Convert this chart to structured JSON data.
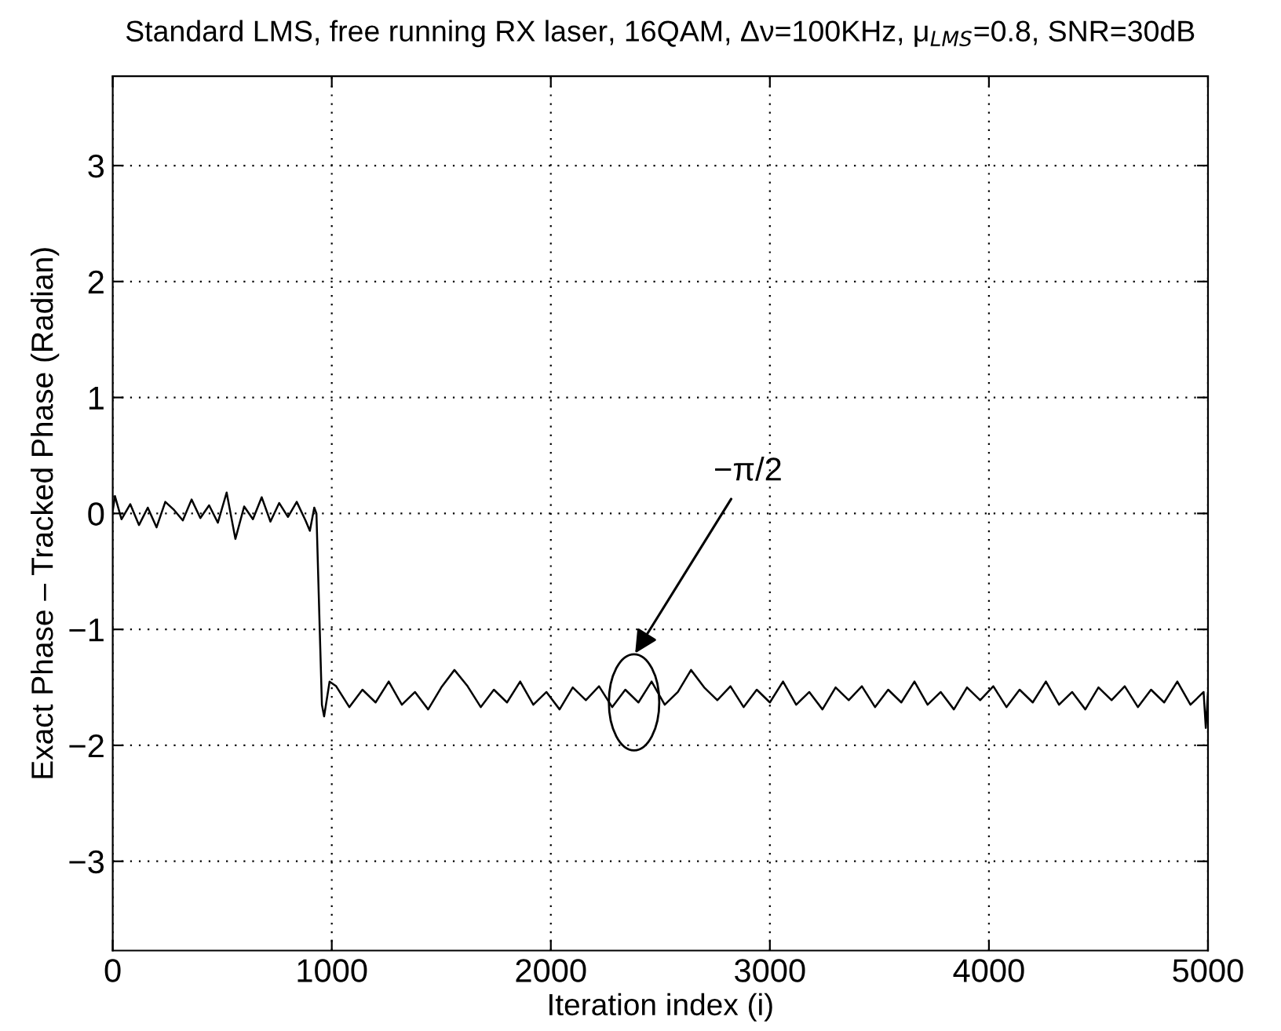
{
  "chart_data": {
    "type": "line",
    "title": "Standard LMS, free running RX laser, 16QAM, Δν=100KHz, μ$_{LMS}$=0.8, SNR=30dB",
    "xlabel": "Iteration index (i)",
    "ylabel": "Exact Phase – Tracked Phase (Radian)",
    "annotations": [
      "−π/2"
    ],
    "xlim": [
      0,
      5000
    ],
    "xticks": [
      0,
      1000,
      2000,
      3000,
      4000,
      5000
    ],
    "ylim": [
      -3.77,
      3.77
    ],
    "yticks": [
      -3,
      -2,
      -1,
      0,
      1,
      2,
      3
    ],
    "grid": true,
    "legend": false,
    "marker": "none",
    "line_style": "solid",
    "series": [
      {
        "color": "#000000",
        "x": [
          0,
          10,
          40,
          80,
          120,
          160,
          200,
          240,
          280,
          320,
          360,
          400,
          440,
          480,
          520,
          560,
          600,
          640,
          680,
          720,
          760,
          800,
          840,
          880,
          900,
          920,
          930,
          945,
          955,
          965,
          990,
          1020,
          1080,
          1140,
          1200,
          1260,
          1320,
          1380,
          1440,
          1500,
          1560,
          1620,
          1680,
          1740,
          1800,
          1860,
          1920,
          1980,
          2040,
          2100,
          2160,
          2220,
          2280,
          2340,
          2400,
          2460,
          2520,
          2580,
          2640,
          2700,
          2760,
          2820,
          2880,
          2940,
          3000,
          3060,
          3120,
          3180,
          3240,
          3300,
          3360,
          3420,
          3480,
          3540,
          3600,
          3660,
          3720,
          3780,
          3840,
          3900,
          3960,
          4020,
          4080,
          4140,
          4200,
          4260,
          4320,
          4380,
          4440,
          4500,
          4560,
          4620,
          4680,
          4740,
          4800,
          4860,
          4920,
          4980,
          4990,
          5000
        ],
        "values": [
          0.02,
          0.15,
          -0.05,
          0.08,
          -0.1,
          0.05,
          -0.12,
          0.1,
          0.03,
          -0.06,
          0.12,
          -0.04,
          0.07,
          -0.08,
          0.18,
          -0.22,
          0.06,
          -0.05,
          0.14,
          -0.07,
          0.09,
          -0.03,
          0.1,
          -0.06,
          -0.15,
          0.05,
          0.0,
          -1.0,
          -1.65,
          -1.75,
          -1.45,
          -1.49,
          -1.67,
          -1.52,
          -1.63,
          -1.45,
          -1.65,
          -1.54,
          -1.69,
          -1.5,
          -1.35,
          -1.49,
          -1.67,
          -1.52,
          -1.63,
          -1.45,
          -1.65,
          -1.54,
          -1.69,
          -1.5,
          -1.61,
          -1.49,
          -1.67,
          -1.52,
          -1.63,
          -1.45,
          -1.65,
          -1.54,
          -1.35,
          -1.5,
          -1.61,
          -1.49,
          -1.67,
          -1.52,
          -1.63,
          -1.45,
          -1.65,
          -1.54,
          -1.69,
          -1.5,
          -1.61,
          -1.49,
          -1.67,
          -1.52,
          -1.63,
          -1.45,
          -1.65,
          -1.54,
          -1.69,
          -1.5,
          -1.61,
          -1.49,
          -1.67,
          -1.52,
          -1.63,
          -1.45,
          -1.65,
          -1.54,
          -1.69,
          -1.5,
          -1.61,
          -1.49,
          -1.67,
          -1.52,
          -1.63,
          -1.45,
          -1.65,
          -1.54,
          -1.85,
          -1.55
        ]
      }
    ]
  }
}
